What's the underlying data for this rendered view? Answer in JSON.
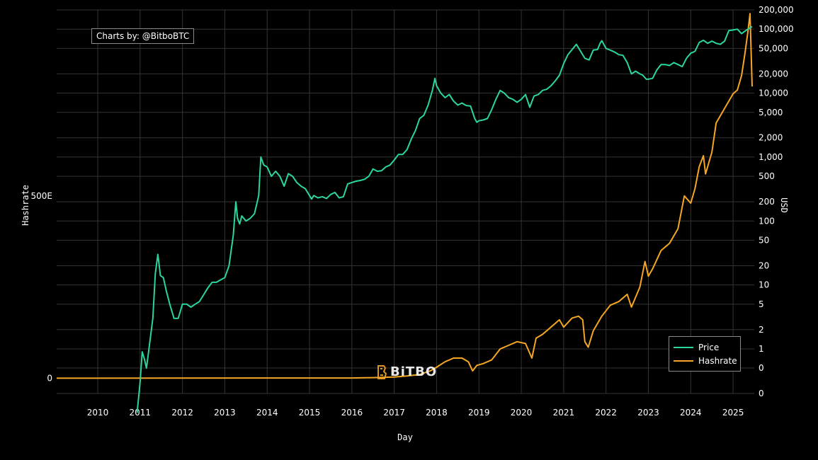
{
  "credit": "Charts by: @BitboBTC",
  "watermark": "BiTBO",
  "colors": {
    "price": "#2bd69b",
    "hashrate": "#f5a623",
    "grid": "#333333",
    "background": "#000000"
  },
  "chart_data": {
    "type": "line",
    "xlabel": "Day",
    "ylabel_left": "Hashrate",
    "ylabel_right": "USD",
    "x_ticks": [
      "2010",
      "2011",
      "2012",
      "2013",
      "2014",
      "2015",
      "2016",
      "2017",
      "2018",
      "2019",
      "2020",
      "2021",
      "2022",
      "2023",
      "2024",
      "2025"
    ],
    "x_range": [
      2009.03,
      2025.5
    ],
    "y_left_ticks": [
      "0",
      "500E"
    ],
    "y_left_range_EH": [
      -42,
      1010
    ],
    "y_right_scale": "log",
    "y_right_ticks": [
      "0",
      "0",
      "1",
      "2",
      "5",
      "10",
      "20",
      "50",
      "100",
      "200",
      "500",
      "1,000",
      "2,000",
      "5,000",
      "10,000",
      "20,000",
      "50,000",
      "100,000",
      "200,000"
    ],
    "legend": {
      "placement": "bottom-right",
      "entries": [
        "Price",
        "Hashrate"
      ]
    },
    "grid": true,
    "series": [
      {
        "name": "Price",
        "axis": "right",
        "x": [
          2010.93,
          2011.0,
          2011.05,
          2011.1,
          2011.15,
          2011.2,
          2011.3,
          2011.36,
          2011.42,
          2011.48,
          2011.55,
          2011.62,
          2011.7,
          2011.8,
          2011.9,
          2012.0,
          2012.1,
          2012.2,
          2012.3,
          2012.4,
          2012.5,
          2012.6,
          2012.7,
          2012.8,
          2012.9,
          2013.0,
          2013.1,
          2013.2,
          2013.26,
          2013.3,
          2013.35,
          2013.4,
          2013.5,
          2013.6,
          2013.7,
          2013.8,
          2013.85,
          2013.92,
          2014.0,
          2014.1,
          2014.2,
          2014.3,
          2014.4,
          2014.5,
          2014.6,
          2014.7,
          2014.8,
          2014.9,
          2015.0,
          2015.05,
          2015.1,
          2015.2,
          2015.3,
          2015.4,
          2015.5,
          2015.6,
          2015.7,
          2015.8,
          2015.9,
          2016.0,
          2016.1,
          2016.2,
          2016.3,
          2016.4,
          2016.5,
          2016.6,
          2016.7,
          2016.8,
          2016.9,
          2017.0,
          2017.1,
          2017.2,
          2017.3,
          2017.4,
          2017.5,
          2017.6,
          2017.7,
          2017.8,
          2017.9,
          2017.96,
          2018.0,
          2018.1,
          2018.2,
          2018.3,
          2018.4,
          2018.5,
          2018.6,
          2018.7,
          2018.8,
          2018.9,
          2018.95,
          2019.0,
          2019.1,
          2019.2,
          2019.3,
          2019.4,
          2019.5,
          2019.6,
          2019.7,
          2019.8,
          2019.9,
          2020.0,
          2020.1,
          2020.2,
          2020.3,
          2020.4,
          2020.5,
          2020.6,
          2020.7,
          2020.8,
          2020.9,
          2021.0,
          2021.1,
          2021.2,
          2021.3,
          2021.4,
          2021.5,
          2021.6,
          2021.7,
          2021.8,
          2021.86,
          2021.9,
          2022.0,
          2022.1,
          2022.2,
          2022.3,
          2022.4,
          2022.5,
          2022.6,
          2022.7,
          2022.8,
          2022.87,
          2022.95,
          2023.0,
          2023.1,
          2023.2,
          2023.3,
          2023.4,
          2023.5,
          2023.6,
          2023.7,
          2023.8,
          2023.9,
          2024.0,
          2024.1,
          2024.2,
          2024.3,
          2024.4,
          2024.5,
          2024.6,
          2024.7,
          2024.8,
          2024.9,
          2025.0,
          2025.1,
          2025.2,
          2025.3,
          2025.4,
          2025.45
        ],
        "y": [
          0.1,
          0.3,
          0.9,
          0.7,
          0.5,
          0.9,
          3.0,
          15,
          30,
          14,
          13,
          8,
          5,
          3,
          3,
          5,
          5,
          4.5,
          5,
          5.5,
          7,
          9,
          11,
          11,
          12,
          13,
          20,
          60,
          200,
          110,
          90,
          120,
          100,
          110,
          130,
          250,
          1000,
          750,
          700,
          500,
          600,
          500,
          350,
          550,
          500,
          400,
          350,
          320,
          250,
          220,
          250,
          230,
          240,
          225,
          260,
          280,
          230,
          240,
          380,
          400,
          420,
          430,
          450,
          500,
          650,
          600,
          610,
          700,
          750,
          900,
          1100,
          1100,
          1300,
          1900,
          2600,
          4000,
          4500,
          6500,
          11000,
          17000,
          13000,
          10000,
          8500,
          9500,
          7500,
          6500,
          7000,
          6400,
          6300,
          4000,
          3500,
          3700,
          3800,
          4000,
          5500,
          8000,
          11000,
          10000,
          8500,
          8000,
          7200,
          8000,
          9500,
          6000,
          9000,
          9500,
          11000,
          11500,
          13000,
          15500,
          19000,
          29000,
          40000,
          48000,
          58000,
          45000,
          35000,
          33000,
          47000,
          48000,
          60000,
          66000,
          50000,
          47000,
          44000,
          40000,
          39000,
          30000,
          20000,
          22000,
          20000,
          19000,
          16500,
          16500,
          17000,
          23000,
          28000,
          28000,
          27000,
          30000,
          28000,
          26000,
          35000,
          42000,
          45000,
          62000,
          67000,
          60000,
          65000,
          60000,
          58000,
          65000,
          95000,
          97000,
          100000,
          85000,
          95000,
          105000,
          110000
        ]
      },
      {
        "name": "Hashrate",
        "axis": "left",
        "x": [
          2009.03,
          2016.0,
          2016.5,
          2017.0,
          2017.3,
          2017.6,
          2017.85,
          2018.0,
          2018.2,
          2018.4,
          2018.6,
          2018.75,
          2018.85,
          2018.95,
          2019.1,
          2019.3,
          2019.5,
          2019.7,
          2019.9,
          2020.1,
          2020.25,
          2020.35,
          2020.5,
          2020.7,
          2020.9,
          2021.0,
          2021.2,
          2021.35,
          2021.45,
          2021.5,
          2021.58,
          2021.7,
          2021.9,
          2022.1,
          2022.3,
          2022.5,
          2022.6,
          2022.8,
          2022.92,
          2023.0,
          2023.1,
          2023.3,
          2023.5,
          2023.7,
          2023.85,
          2024.0,
          2024.1,
          2024.2,
          2024.3,
          2024.35,
          2024.5,
          2024.6,
          2024.7,
          2024.85,
          2025.0,
          2025.1,
          2025.2,
          2025.28,
          2025.35,
          2025.4,
          2025.45
        ],
        "y": [
          0,
          0.5,
          1.5,
          3,
          6,
          10,
          20,
          30,
          45,
          55,
          55,
          45,
          20,
          35,
          40,
          50,
          80,
          90,
          100,
          95,
          55,
          110,
          120,
          140,
          160,
          140,
          165,
          170,
          160,
          100,
          85,
          130,
          170,
          200,
          210,
          230,
          195,
          250,
          320,
          280,
          300,
          350,
          370,
          410,
          500,
          480,
          520,
          580,
          610,
          560,
          620,
          700,
          720,
          750,
          780,
          790,
          830,
          890,
          950,
          1000,
          800
        ]
      }
    ]
  }
}
